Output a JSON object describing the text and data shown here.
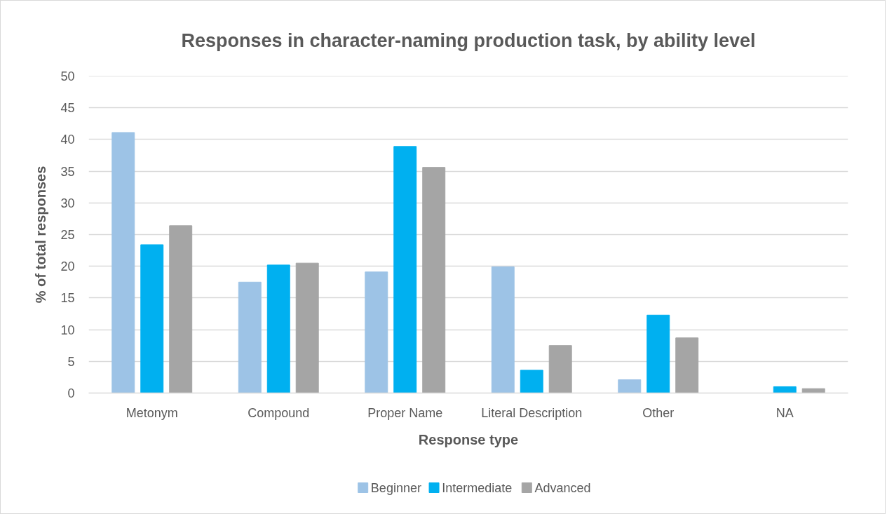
{
  "chart_data": {
    "type": "bar",
    "title": "Responses in character-naming production task, by ability level",
    "xlabel": "Response type",
    "ylabel": "% of total responses",
    "categories": [
      "Metonym",
      "Compound",
      "Proper Name",
      "Literal Description",
      "Other",
      "NA"
    ],
    "series": [
      {
        "name": "Beginner",
        "color": "#9dc3e6",
        "values": [
          41.1,
          17.5,
          19.1,
          19.9,
          2.1,
          0
        ]
      },
      {
        "name": "Intermediate",
        "color": "#00b0f0",
        "values": [
          23.4,
          20.2,
          38.9,
          3.6,
          12.3,
          1.0
        ]
      },
      {
        "name": "Advanced",
        "color": "#a5a5a5",
        "values": [
          26.4,
          20.5,
          35.6,
          7.5,
          8.7,
          0.7
        ]
      }
    ],
    "ylim": [
      0,
      50
    ],
    "yticks": [
      0,
      5,
      10,
      15,
      20,
      25,
      30,
      35,
      40,
      45,
      50
    ],
    "grid": "y",
    "legend": "bottom"
  }
}
